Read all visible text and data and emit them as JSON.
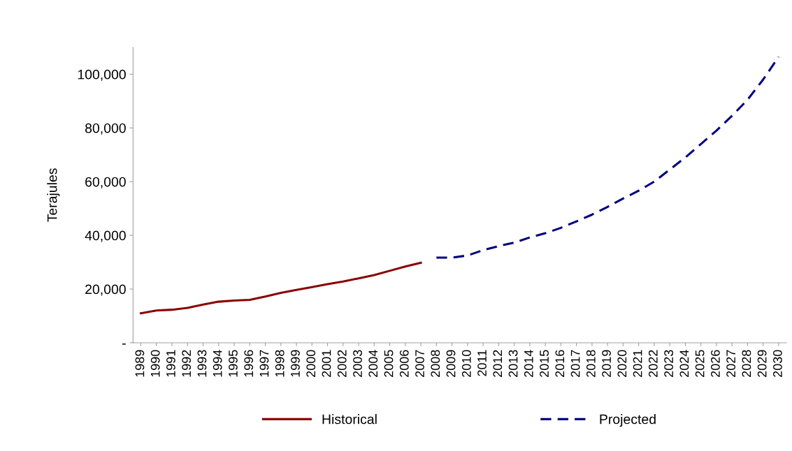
{
  "chart_data": {
    "type": "line",
    "ylabel": "Terajules",
    "categories": [
      "1989",
      "1990",
      "1991",
      "1992",
      "1993",
      "1994",
      "1995",
      "1996",
      "1997",
      "1998",
      "1999",
      "2000",
      "2001",
      "2002",
      "2003",
      "2004",
      "2005",
      "2006",
      "2007",
      "2008",
      "2009",
      "2010",
      "2011",
      "2012",
      "2013",
      "2014",
      "2015",
      "2016",
      "2017",
      "2018",
      "2019",
      "2020",
      "2021",
      "2022",
      "2023",
      "2024",
      "2025",
      "2026",
      "2027",
      "2028",
      "2029",
      "2030"
    ],
    "series": [
      {
        "name": "Historical",
        "color": "#8b0000",
        "line_style": "solid",
        "values": [
          11000,
          12000,
          12300,
          13000,
          14200,
          15300,
          15700,
          16000,
          17200,
          18600,
          19700,
          20700,
          21800,
          22800,
          24000,
          25200,
          26800,
          28400,
          29800,
          null,
          null,
          null,
          null,
          null,
          null,
          null,
          null,
          null,
          null,
          null,
          null,
          null,
          null,
          null,
          null,
          null,
          null,
          null,
          null,
          null,
          null,
          null
        ]
      },
      {
        "name": "Projected",
        "color": "#000080",
        "line_style": "dashed",
        "values": [
          null,
          null,
          null,
          null,
          null,
          null,
          null,
          null,
          null,
          null,
          null,
          null,
          null,
          null,
          null,
          null,
          null,
          null,
          null,
          31700,
          31700,
          32500,
          34500,
          36000,
          37300,
          39200,
          40800,
          42800,
          45200,
          47700,
          50600,
          53700,
          56600,
          60000,
          64500,
          69000,
          74000,
          79000,
          84500,
          90500,
          98000,
          106500
        ]
      }
    ],
    "ylim": [
      0,
      110000
    ],
    "yticks": [
      {
        "value": 0,
        "label": "-"
      },
      {
        "value": 20000,
        "label": "20,000"
      },
      {
        "value": 40000,
        "label": "40,000"
      },
      {
        "value": 60000,
        "label": "60,000"
      },
      {
        "value": 80000,
        "label": "80,000"
      },
      {
        "value": 100000,
        "label": "100,000"
      }
    ],
    "grid": false,
    "legend": "bottom",
    "marker": "none"
  }
}
